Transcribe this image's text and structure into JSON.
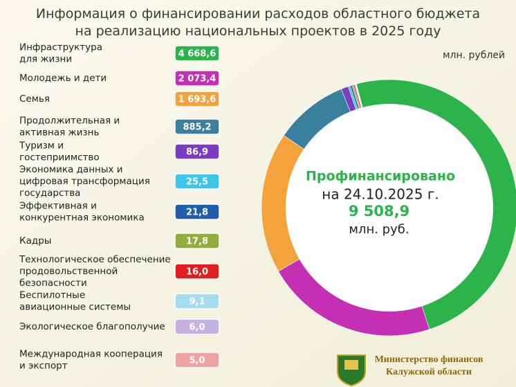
{
  "chart_data": {
    "type": "pie",
    "title": "Информация о финансировании расходов областного бюджета\nна реализацию национальных проектов в 2025 году",
    "unit_label": "млн. рублей",
    "categories": [
      "Инфраструктура\nдля жизни",
      "Молодежь и дети",
      "Семья",
      "Продолжительная и\nактивная жизнь",
      "Туризм и\nгостеприимство",
      "Экономика данных и\nцифровая трансформация\nгосударства",
      "Эффективная и\nконкурентная экономика",
      "Кадры",
      "Технологическое обеспечение\nпродовольственной\nбезопасности",
      "Беспилотные\nавиационные системы",
      "Экологическое благополучие",
      "Международная кооперация\nи экспорт"
    ],
    "values": [
      4668.6,
      2073.4,
      1693.6,
      885.2,
      86.9,
      25.5,
      21.8,
      17.8,
      16.0,
      9.1,
      6.0,
      5.0
    ],
    "value_labels": [
      "4 668,6",
      "2 073,4",
      "1 693,6",
      "885,2",
      "86,9",
      "25,5",
      "21,8",
      "17,8",
      "16,0",
      "9,1",
      "6,0",
      "5,0"
    ],
    "colors": [
      "#2cb34a",
      "#c42fb3",
      "#f4a23c",
      "#3a7f9e",
      "#7a3cc2",
      "#3ec6ea",
      "#1f5ea8",
      "#8fae3e",
      "#e01f1f",
      "#a6dcf0",
      "#c7b0e2",
      "#f0a2a2"
    ],
    "center_text": [
      "Профинансировано",
      "на 24.10.2025  г.",
      "9 508,9",
      "млн. руб."
    ],
    "footer": [
      "Министерство финансов",
      "Калужской области"
    ]
  }
}
